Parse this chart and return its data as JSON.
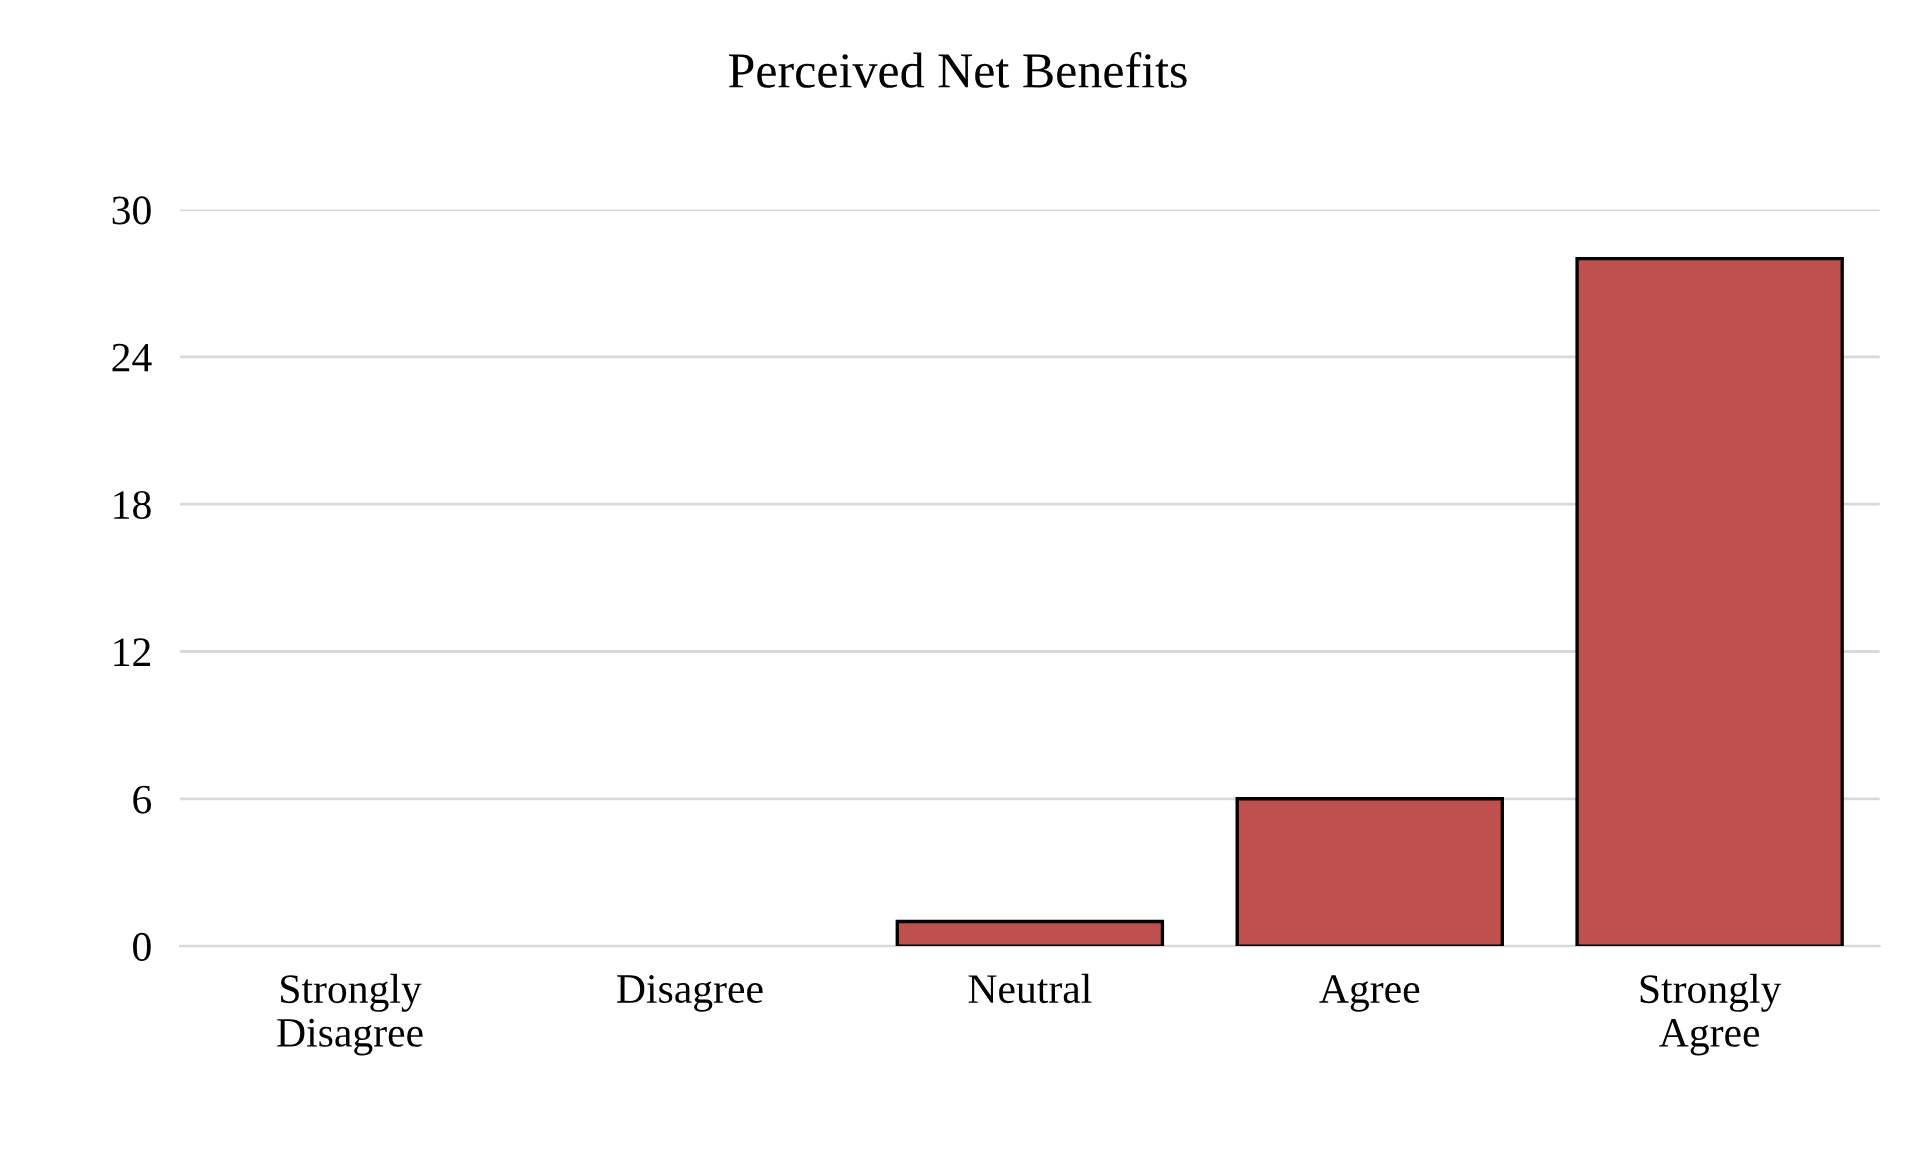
{
  "chart_data": {
    "type": "bar",
    "title": "Perceived Net Benefits",
    "categories": [
      "Strongly\nDisagree",
      "Disagree",
      "Neutral",
      "Agree",
      "Strongly\nAgree"
    ],
    "values": [
      0,
      0,
      1,
      6,
      28
    ],
    "color": "#c0504d",
    "ylim": [
      0,
      30
    ],
    "yticks": [
      0,
      6,
      12,
      18,
      24,
      30
    ],
    "grid": "y",
    "legend": false
  }
}
